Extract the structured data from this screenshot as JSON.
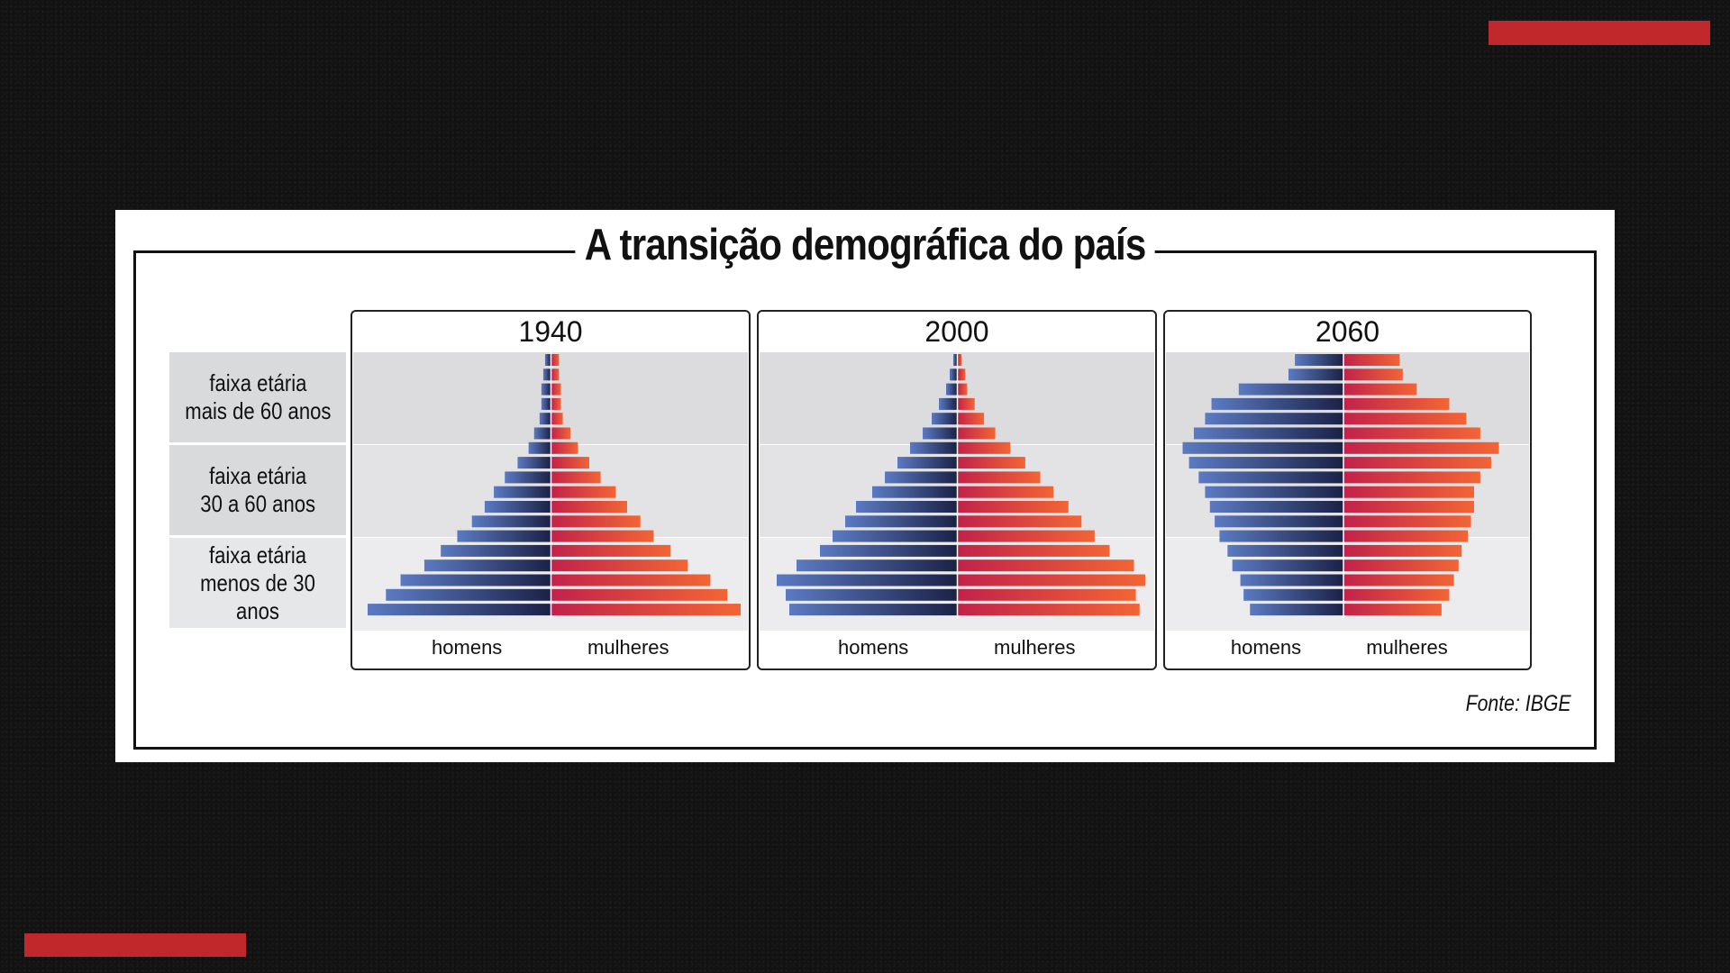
{
  "title": "A transição demográfica do país",
  "source": "Fonte: IBGE",
  "age_groups": [
    "faixa etária\nmais de 60 anos",
    "faixa etária\n30 a 60 anos",
    "faixa etária\nmenos de 30 anos"
  ],
  "colors": {
    "men_dark": "#1b2247",
    "men_light": "#5b7ac2",
    "women_dark": "#c2224a",
    "women_light": "#f26535",
    "accent": "#c0282b"
  },
  "chart_data": [
    {
      "type": "bar",
      "title": "1940",
      "xlabel_left": "homens",
      "xlabel_right": "mulheres",
      "note": "rows top (oldest) to bottom (youngest); values are relative population share",
      "men": [
        3,
        4,
        5,
        5,
        6,
        9,
        12,
        18,
        25,
        31,
        36,
        43,
        51,
        60,
        69,
        82,
        90,
        100
      ],
      "women": [
        4,
        4,
        5,
        5,
        6,
        10,
        14,
        20,
        26,
        34,
        40,
        47,
        54,
        63,
        72,
        84,
        93,
        100
      ]
    },
    {
      "type": "bar",
      "title": "2000",
      "xlabel_left": "homens",
      "xlabel_right": "mulheres",
      "men": [
        2,
        4,
        6,
        10,
        14,
        19,
        26,
        33,
        40,
        47,
        56,
        62,
        69,
        76,
        89,
        100,
        95,
        93
      ],
      "women": [
        2,
        4,
        5,
        9,
        14,
        20,
        28,
        36,
        44,
        51,
        59,
        66,
        73,
        81,
        94,
        100,
        95,
        97
      ]
    },
    {
      "type": "bar",
      "title": "2060",
      "xlabel_left": "homens",
      "xlabel_right": "mulheres",
      "men": [
        30,
        34,
        65,
        82,
        86,
        93,
        100,
        96,
        90,
        86,
        83,
        80,
        77,
        72,
        69,
        64,
        62,
        58
      ],
      "women": [
        36,
        38,
        47,
        68,
        79,
        88,
        100,
        95,
        88,
        84,
        84,
        82,
        80,
        76,
        74,
        71,
        68,
        63
      ]
    }
  ]
}
